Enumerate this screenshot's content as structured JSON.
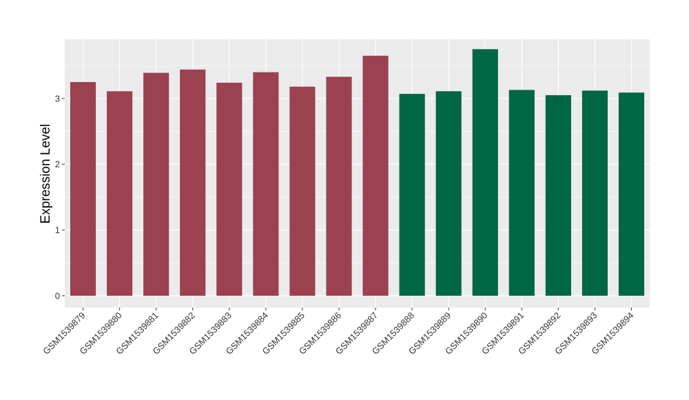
{
  "chart_data": {
    "type": "bar",
    "title": "",
    "xlabel": "",
    "ylabel": "Expression Level",
    "ylim": [
      -0.18,
      3.9
    ],
    "yticks": [
      0,
      1,
      2,
      3
    ],
    "grid": true,
    "categories": [
      "GSM1539879",
      "GSM1539880",
      "GSM1539881",
      "GSM1539882",
      "GSM1539883",
      "GSM1539884",
      "GSM1539885",
      "GSM1539886",
      "GSM1539887",
      "GSM1539888",
      "GSM1539889",
      "GSM1539890",
      "GSM1539891",
      "GSM1539892",
      "GSM1539893",
      "GSM1539894"
    ],
    "values": [
      3.25,
      3.11,
      3.39,
      3.44,
      3.24,
      3.4,
      3.18,
      3.33,
      3.65,
      3.07,
      3.11,
      3.75,
      3.13,
      3.05,
      3.12,
      3.09
    ],
    "bar_colors": [
      "#9b4150",
      "#9b4150",
      "#9b4150",
      "#9b4150",
      "#9b4150",
      "#9b4150",
      "#9b4150",
      "#9b4150",
      "#9b4150",
      "#006644",
      "#006644",
      "#006644",
      "#006644",
      "#006644",
      "#006644",
      "#006644"
    ],
    "panel_background": "#ebebeb",
    "grid_color": "#ffffff"
  }
}
